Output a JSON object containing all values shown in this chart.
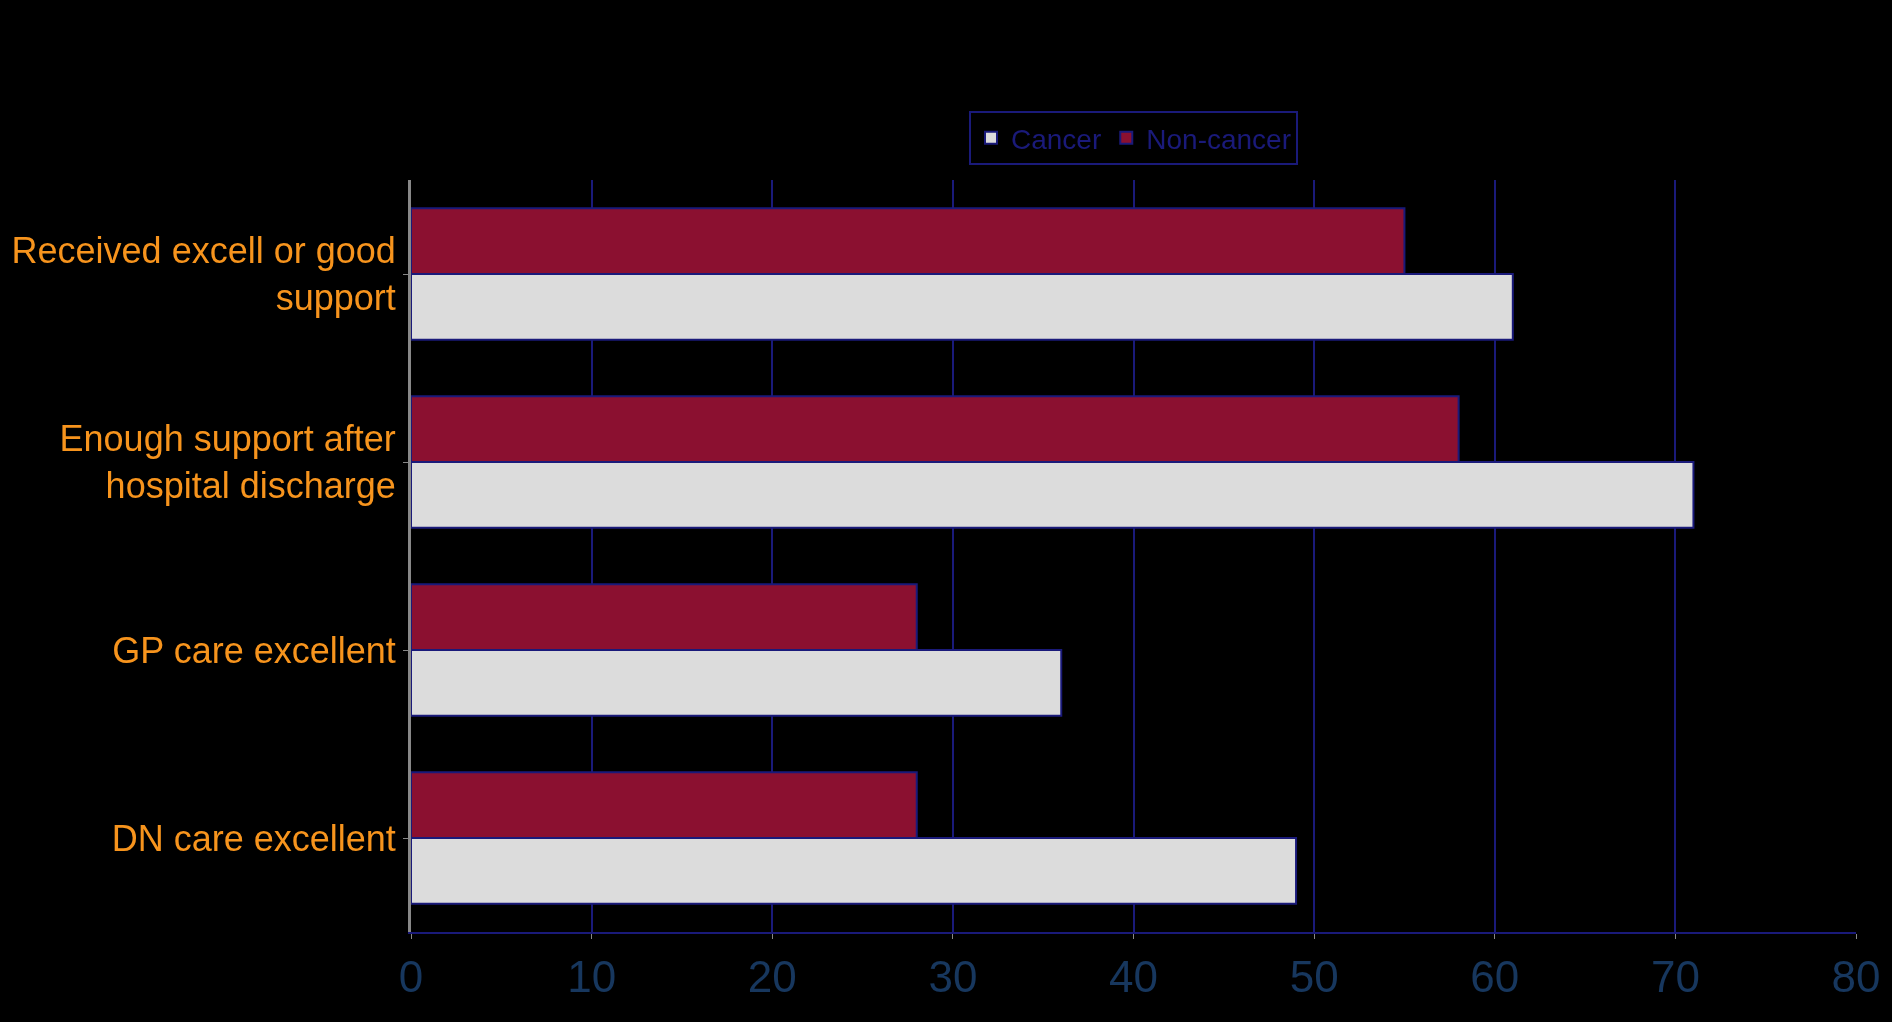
{
  "chart_data": {
    "type": "bar",
    "orientation": "horizontal",
    "categories": [
      "Received excell or good support",
      "Enough support after hospital discharge",
      "GP care excellent",
      "DN care excellent"
    ],
    "series": [
      {
        "name": "Cancer",
        "color": "#dcdcdc",
        "values": [
          61,
          71,
          36,
          49
        ]
      },
      {
        "name": "Non-cancer",
        "color": "#8b1030",
        "values": [
          55,
          58,
          28,
          28
        ]
      }
    ],
    "xlim": [
      0,
      80
    ],
    "xticks": [
      0,
      10,
      20,
      30,
      40,
      50,
      60,
      70,
      80
    ],
    "grid": "x",
    "legend": "top"
  }
}
